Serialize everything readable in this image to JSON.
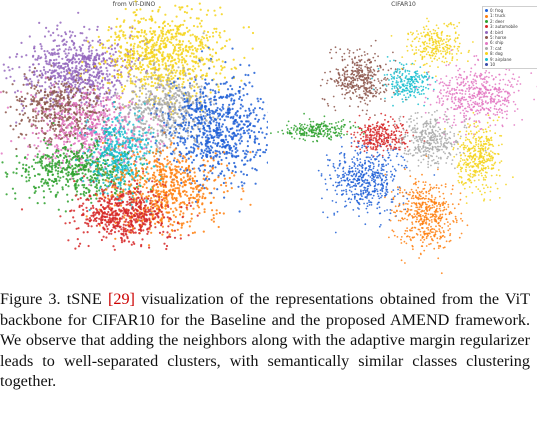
{
  "panels": [
    {
      "title": "from ViT-DINO"
    },
    {
      "title": "CIFAR10"
    }
  ],
  "legend": {
    "items": [
      {
        "label": "0: frog",
        "color": "#1f5fd6"
      },
      {
        "label": "1: truck",
        "color": "#ff7f0e"
      },
      {
        "label": "2: deer",
        "color": "#2ca02c"
      },
      {
        "label": "3: automobile",
        "color": "#d62728"
      },
      {
        "label": "4: bird",
        "color": "#9467bd"
      },
      {
        "label": "5: horse",
        "color": "#8c564b"
      },
      {
        "label": "6: ship",
        "color": "#e377c2"
      },
      {
        "label": "7: cat",
        "color": "#a8a8a8"
      },
      {
        "label": "8: dog",
        "color": "#f5d31a"
      },
      {
        "label": "9: airplane",
        "color": "#17becf"
      },
      {
        "label": "10",
        "color": "#3b4aa8"
      }
    ]
  },
  "caption": {
    "prefix": "Figure 3. tSNE ",
    "ref": "[29]",
    "body": " visualization of the representations obtained from the ViT backbone for CIFAR10 for the Baseline and the proposed AMEND framework. We observe that adding the neighbors along with the adaptive margin regularizer leads to well-separated clusters, with semantically similar classes clustering together."
  }
}
